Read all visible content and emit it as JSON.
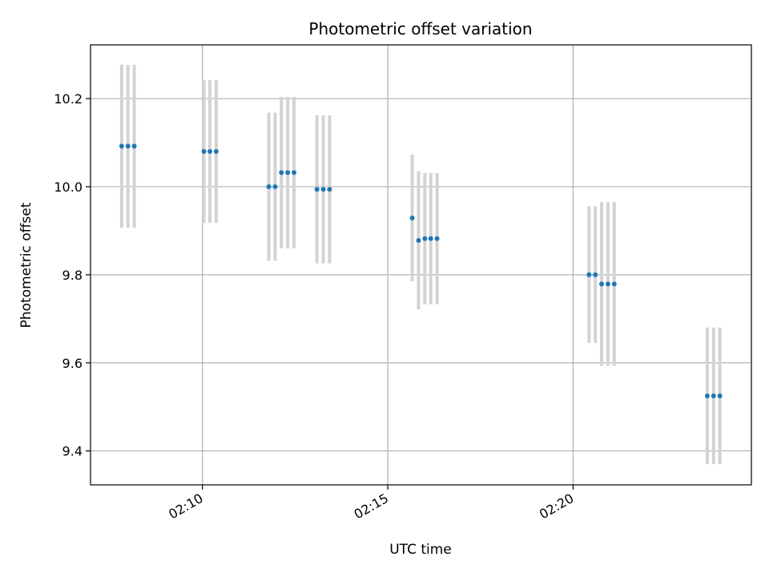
{
  "chart_data": {
    "type": "scatter",
    "title": "Photometric offset variation",
    "xlabel": "UTC time",
    "ylabel": "Photometric offset",
    "x_unit": "minutes past 02:00 UTC",
    "xlim": [
      6.98,
      24.81
    ],
    "ylim": [
      9.323,
      10.322
    ],
    "x_ticks": [
      {
        "value": 10,
        "label": "02:10"
      },
      {
        "value": 15,
        "label": "02:15"
      },
      {
        "value": 20,
        "label": "02:20"
      }
    ],
    "y_ticks": [
      9.4,
      9.6,
      9.8,
      10.0,
      10.2
    ],
    "y_tick_labels": [
      "9.4",
      "9.6",
      "9.8",
      "10.0",
      "10.2"
    ],
    "grid": true,
    "series": [
      {
        "color": "#1f77b4",
        "error_color": "#d3d3d3",
        "points": [
          {
            "x": 7.82,
            "y": 10.092,
            "err": 0.185
          },
          {
            "x": 7.99,
            "y": 10.092,
            "err": 0.185
          },
          {
            "x": 8.16,
            "y": 10.092,
            "err": 0.185
          },
          {
            "x": 10.04,
            "y": 10.08,
            "err": 0.162
          },
          {
            "x": 10.2,
            "y": 10.08,
            "err": 0.162
          },
          {
            "x": 10.37,
            "y": 10.08,
            "err": 0.162
          },
          {
            "x": 11.79,
            "y": 10.0,
            "err": 0.168
          },
          {
            "x": 11.96,
            "y": 10.0,
            "err": 0.168
          },
          {
            "x": 12.13,
            "y": 10.032,
            "err": 0.172
          },
          {
            "x": 12.3,
            "y": 10.032,
            "err": 0.172
          },
          {
            "x": 12.47,
            "y": 10.032,
            "err": 0.172
          },
          {
            "x": 13.09,
            "y": 9.994,
            "err": 0.168
          },
          {
            "x": 13.26,
            "y": 9.994,
            "err": 0.168
          },
          {
            "x": 13.43,
            "y": 9.994,
            "err": 0.168
          },
          {
            "x": 15.66,
            "y": 9.929,
            "err": 0.144
          },
          {
            "x": 15.83,
            "y": 9.878,
            "err": 0.157
          },
          {
            "x": 16.0,
            "y": 9.882,
            "err": 0.149
          },
          {
            "x": 16.16,
            "y": 9.882,
            "err": 0.149
          },
          {
            "x": 16.33,
            "y": 9.882,
            "err": 0.149
          },
          {
            "x": 20.43,
            "y": 9.8,
            "err": 0.155
          },
          {
            "x": 20.6,
            "y": 9.8,
            "err": 0.155
          },
          {
            "x": 20.77,
            "y": 9.779,
            "err": 0.186
          },
          {
            "x": 20.94,
            "y": 9.779,
            "err": 0.186
          },
          {
            "x": 21.11,
            "y": 9.779,
            "err": 0.186
          },
          {
            "x": 23.62,
            "y": 9.525,
            "err": 0.155
          },
          {
            "x": 23.79,
            "y": 9.525,
            "err": 0.155
          },
          {
            "x": 23.96,
            "y": 9.525,
            "err": 0.155
          }
        ]
      }
    ]
  }
}
